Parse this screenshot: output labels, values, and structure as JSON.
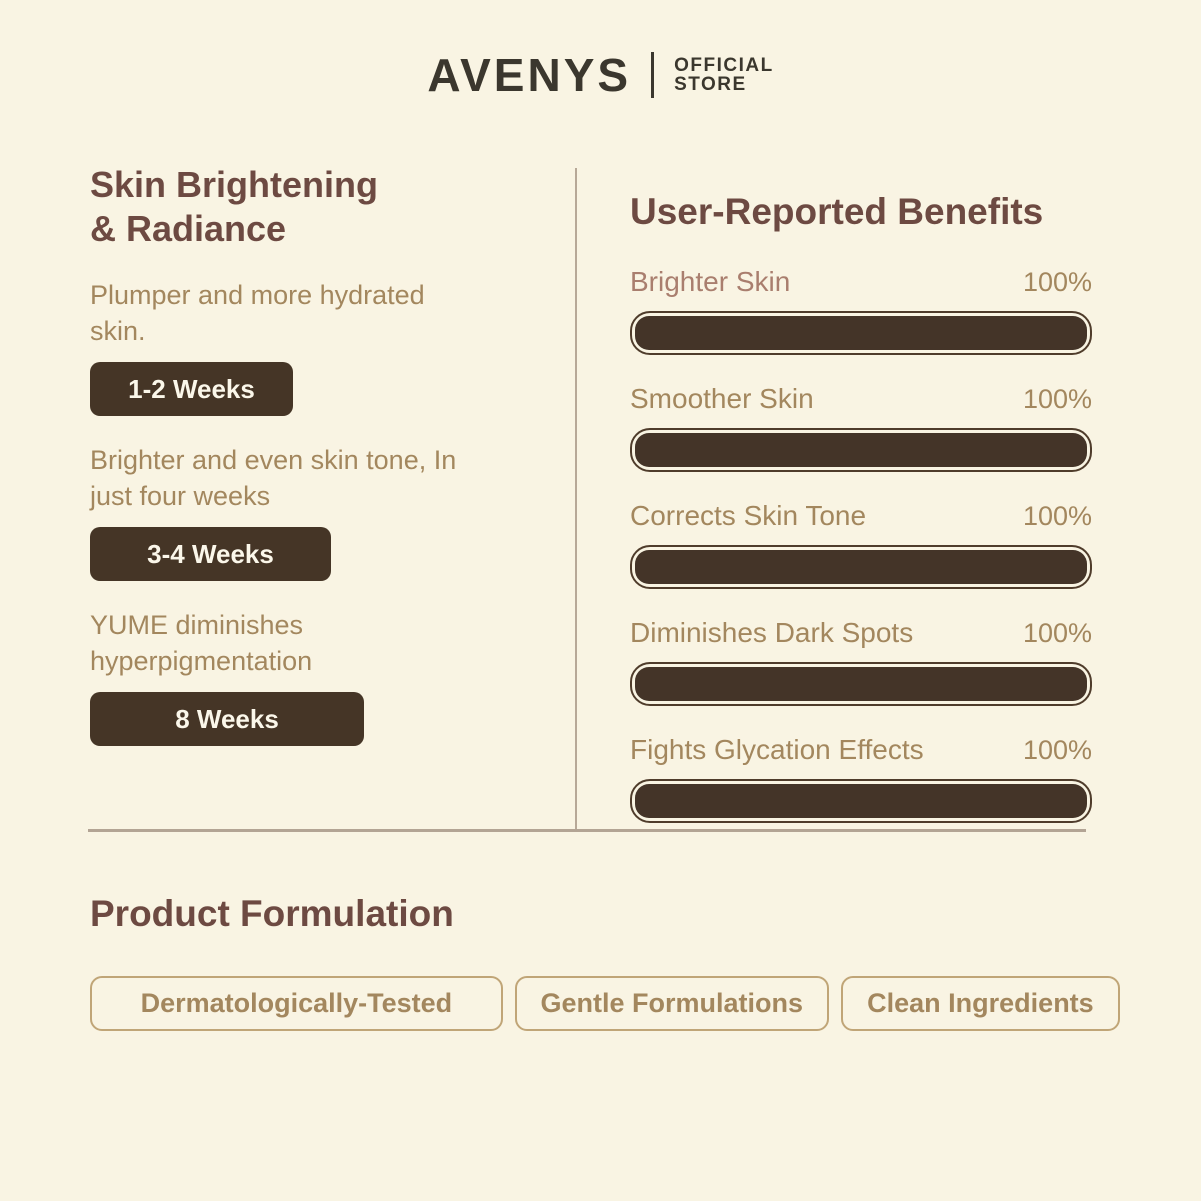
{
  "header": {
    "brand": "AVENYS",
    "store_line1": "OFFICIAL",
    "store_line2": "STORE"
  },
  "left_panel": {
    "title_line1": "Skin Brightening",
    "title_line2": "& Radiance",
    "milestones": [
      {
        "text_line1": "Plumper and more hydrated",
        "text_line2": "skin.",
        "badge": "1-2 Weeks"
      },
      {
        "text_line1": "Brighter and even skin tone, In",
        "text_line2": "just four weeks",
        "badge": "3-4 Weeks"
      },
      {
        "text_line1": "YUME diminishes",
        "text_line2": "hyperpigmentation",
        "badge": "8 Weeks"
      }
    ]
  },
  "benefits_panel": {
    "title": "User-Reported Benefits",
    "items": [
      {
        "label": "Brighter Skin",
        "value": "100%",
        "percent": 100
      },
      {
        "label": "Smoother Skin",
        "value": "100%",
        "percent": 100
      },
      {
        "label": "Corrects Skin Tone",
        "value": "100%",
        "percent": 100
      },
      {
        "label": "Diminishes Dark Spots",
        "value": "100%",
        "percent": 100
      },
      {
        "label": "Fights Glycation Effects",
        "value": "100%",
        "percent": 100
      }
    ]
  },
  "chart_data": {
    "type": "bar",
    "orientation": "horizontal",
    "title": "User-Reported Benefits",
    "categories": [
      "Brighter Skin",
      "Smoother Skin",
      "Corrects Skin Tone",
      "Diminishes Dark Spots",
      "Fights Glycation Effects"
    ],
    "values": [
      100,
      100,
      100,
      100,
      100
    ],
    "unit": "%",
    "xlim": [
      0,
      100
    ],
    "data_labels": [
      "100%",
      "100%",
      "100%",
      "100%",
      "100%"
    ]
  },
  "formulation_panel": {
    "title": "Product Formulation",
    "pills": [
      "Dermatologically-Tested",
      "Gentle Formulations",
      "Clean Ingredients"
    ]
  },
  "colors": {
    "background": "#f9f4e3",
    "logo_charcoal": "#3b372e",
    "heading_maroon": "#6d4a42",
    "body_tan": "#a3875e",
    "label_rosy": "#a97e6e",
    "dark_brown_fill": "#443428",
    "badge_brown": "#453526",
    "badge_text": "#fbf7ea",
    "divider": "#b3a494",
    "pill_border": "#c0a577"
  }
}
